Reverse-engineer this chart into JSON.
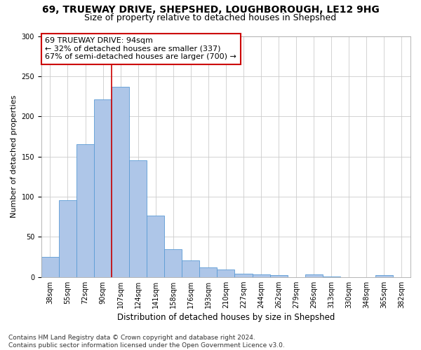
{
  "title1": "69, TRUEWAY DRIVE, SHEPSHED, LOUGHBOROUGH, LE12 9HG",
  "title2": "Size of property relative to detached houses in Shepshed",
  "xlabel": "Distribution of detached houses by size in Shepshed",
  "ylabel": "Number of detached properties",
  "footnote": "Contains HM Land Registry data © Crown copyright and database right 2024.\nContains public sector information licensed under the Open Government Licence v3.0.",
  "bar_labels": [
    "38sqm",
    "55sqm",
    "72sqm",
    "90sqm",
    "107sqm",
    "124sqm",
    "141sqm",
    "158sqm",
    "176sqm",
    "193sqm",
    "210sqm",
    "227sqm",
    "244sqm",
    "262sqm",
    "279sqm",
    "296sqm",
    "313sqm",
    "330sqm",
    "348sqm",
    "365sqm",
    "382sqm"
  ],
  "bar_values": [
    25,
    96,
    165,
    221,
    237,
    145,
    76,
    35,
    21,
    12,
    9,
    4,
    3,
    2,
    0,
    3,
    1,
    0,
    0,
    2,
    0
  ],
  "bar_color": "#aec6e8",
  "bar_edgecolor": "#5b9bd5",
  "vline_x": 3.5,
  "vline_color": "#cc0000",
  "annotation_text": "69 TRUEWAY DRIVE: 94sqm\n← 32% of detached houses are smaller (337)\n67% of semi-detached houses are larger (700) →",
  "annotation_box_edgecolor": "#cc0000",
  "annotation_fontsize": 8,
  "ylim": [
    0,
    300
  ],
  "yticks": [
    0,
    50,
    100,
    150,
    200,
    250,
    300
  ],
  "title1_fontsize": 10,
  "title2_fontsize": 9,
  "xlabel_fontsize": 8.5,
  "ylabel_fontsize": 8,
  "footnote_fontsize": 6.5,
  "grid_color": "#cccccc",
  "background_color": "#ffffff",
  "tick_label_fontsize": 7
}
